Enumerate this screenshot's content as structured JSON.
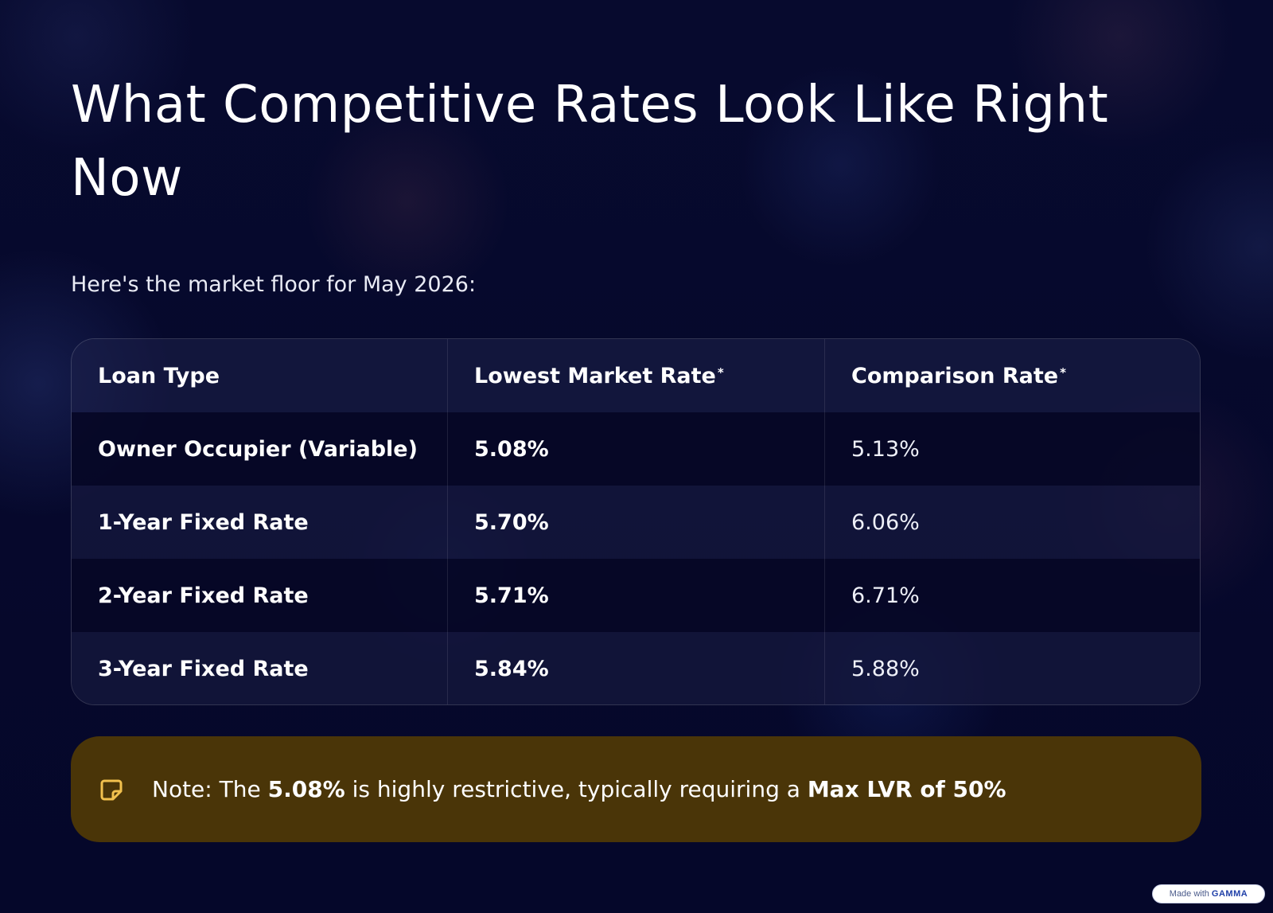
{
  "slide": {
    "title": "What Competitive Rates Look Like Right Now",
    "subtitle": "Here's the market floor for May 2026:"
  },
  "table": {
    "headers": [
      {
        "label": "Loan Type",
        "marker": ""
      },
      {
        "label": "Lowest Market Rate",
        "marker": "*"
      },
      {
        "label": "Comparison Rate",
        "marker": "*"
      }
    ],
    "rows": [
      {
        "loan_type": "Owner Occupier (Variable)",
        "lowest_rate": "5.08%",
        "comparison_rate": "5.13%"
      },
      {
        "loan_type": "1-Year Fixed Rate",
        "lowest_rate": "5.70%",
        "comparison_rate": "6.06%"
      },
      {
        "loan_type": "2-Year Fixed Rate",
        "lowest_rate": "5.71%",
        "comparison_rate": "6.71%"
      },
      {
        "loan_type": "3-Year Fixed Rate",
        "lowest_rate": "5.84%",
        "comparison_rate": "5.88%"
      }
    ]
  },
  "note": {
    "icon": "sticky-note-icon",
    "prefix": "Note: The ",
    "highlight_rate": "5.08%",
    "middle": " is highly restrictive, typically requiring a ",
    "highlight_lvr": "Max LVR of 50%"
  },
  "badge": {
    "made_with": "Made with",
    "brand": "GAMMA"
  },
  "colors": {
    "background": "#05082a",
    "note_background": "#4a3508",
    "note_icon": "#f2c14e",
    "text": "#ffffff"
  }
}
